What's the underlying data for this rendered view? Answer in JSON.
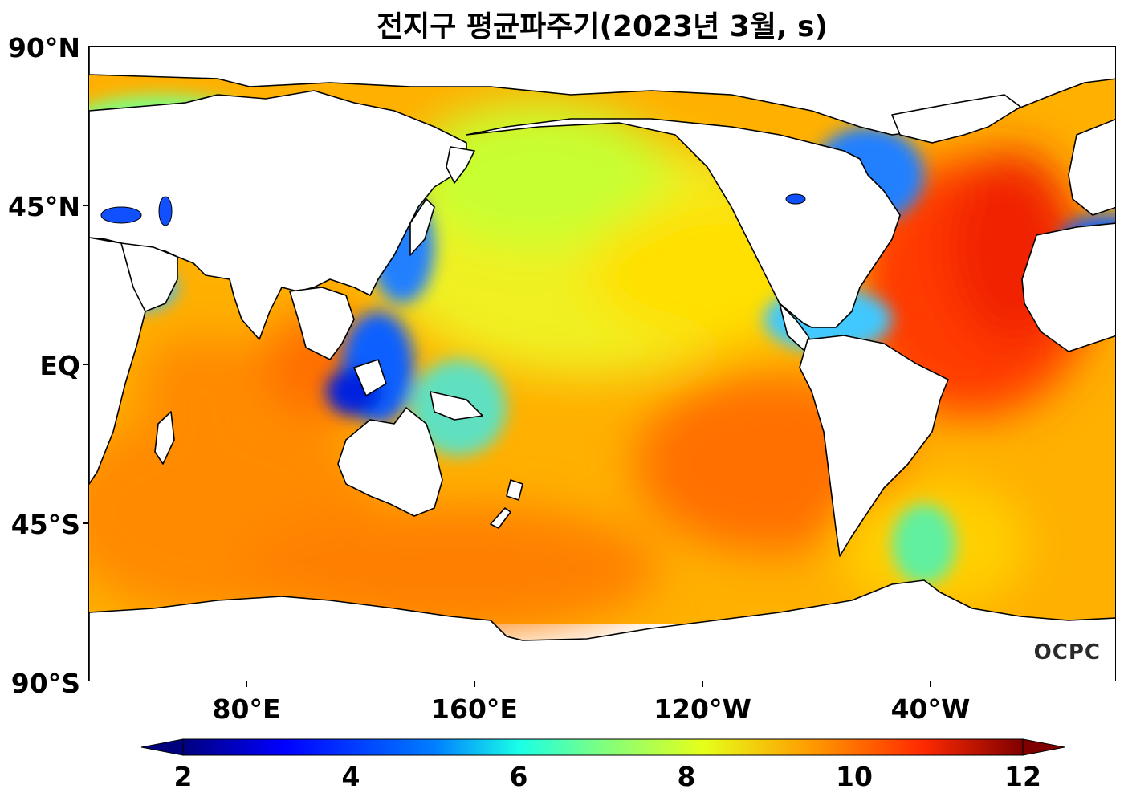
{
  "title": "전지구 평균파주기(2023년 3월, s)",
  "y_axis": {
    "labels": [
      "90°N",
      "45°N",
      "EQ",
      "45°S",
      "90°S"
    ]
  },
  "x_axis": {
    "labels": [
      "80°E",
      "160°E",
      "120°W",
      "40°W"
    ]
  },
  "watermark": "OCPC",
  "colorbar": {
    "min": 2,
    "max": 12,
    "ticks": [
      "2",
      "4",
      "6",
      "8",
      "10",
      "12"
    ],
    "extend": "both",
    "colormap": [
      "#00007f",
      "#0000ff",
      "#007fff",
      "#19ffe6",
      "#7fff7f",
      "#e6ff19",
      "#ff9900",
      "#ff2a00",
      "#7f0000"
    ]
  },
  "map_legend_colors": {
    "land": "#ffffff",
    "coastline": "#000000"
  }
}
